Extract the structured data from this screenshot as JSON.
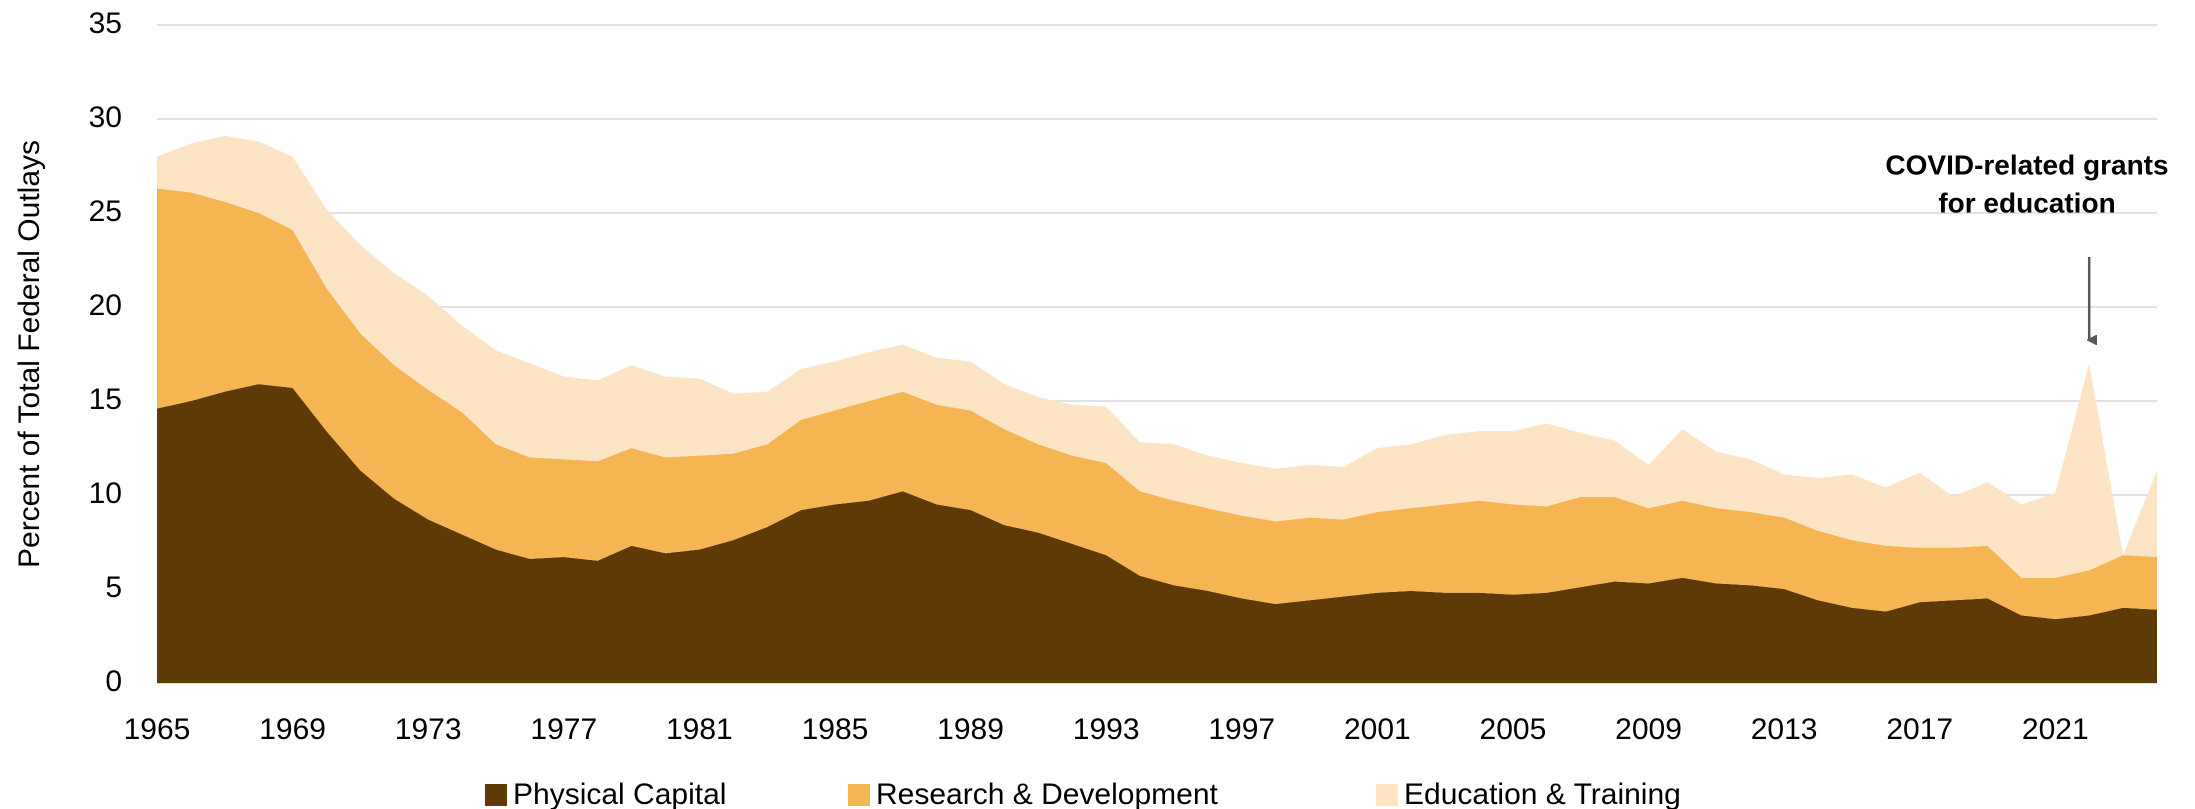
{
  "chart_data": {
    "type": "stacked_area",
    "y_label": "Percent of Total Federal Outlays",
    "x": [
      1965,
      1966,
      1967,
      1968,
      1969,
      1970,
      1971,
      1972,
      1973,
      1974,
      1975,
      1976,
      1977,
      1978,
      1979,
      1980,
      1981,
      1982,
      1983,
      1984,
      1985,
      1986,
      1987,
      1988,
      1989,
      1990,
      1991,
      1992,
      1993,
      1994,
      1995,
      1996,
      1997,
      1998,
      1999,
      2000,
      2001,
      2002,
      2003,
      2004,
      2005,
      2006,
      2007,
      2008,
      2009,
      2010,
      2011,
      2012,
      2013,
      2014,
      2015,
      2016,
      2017,
      2018,
      2019,
      2020,
      2021,
      2022,
      2023,
      2024
    ],
    "series": [
      {
        "name": "Physical Capital",
        "color": "#5e3a06",
        "values": [
          14.6,
          15.0,
          15.5,
          15.9,
          15.7,
          13.4,
          11.3,
          9.8,
          8.7,
          7.9,
          7.1,
          6.6,
          6.7,
          6.5,
          7.3,
          6.9,
          7.1,
          7.6,
          8.3,
          9.2,
          9.5,
          9.7,
          10.2,
          9.5,
          9.2,
          8.4,
          8.0,
          7.4,
          6.8,
          5.7,
          5.2,
          4.9,
          4.5,
          4.2,
          4.4,
          4.6,
          4.8,
          4.9,
          4.8,
          4.8,
          4.7,
          4.8,
          5.1,
          5.4,
          5.3,
          5.6,
          5.3,
          5.2,
          5.0,
          4.4,
          4.0,
          3.8,
          4.3,
          4.4,
          4.5,
          3.6,
          3.4,
          3.6,
          4.0,
          3.9
        ]
      },
      {
        "name": "Research & Development",
        "color": "#f5b553",
        "values": [
          11.7,
          11.1,
          10.1,
          9.1,
          8.4,
          7.6,
          7.3,
          7.1,
          6.9,
          6.5,
          5.6,
          5.4,
          5.2,
          5.3,
          5.2,
          5.1,
          5.0,
          4.6,
          4.4,
          4.8,
          5.0,
          5.3,
          5.3,
          5.3,
          5.3,
          5.1,
          4.7,
          4.7,
          4.9,
          4.5,
          4.5,
          4.4,
          4.4,
          4.4,
          4.4,
          4.1,
          4.3,
          4.4,
          4.7,
          4.9,
          4.8,
          4.6,
          4.8,
          4.5,
          4.0,
          4.1,
          4.0,
          3.9,
          3.8,
          3.7,
          3.6,
          3.5,
          2.9,
          2.8,
          2.8,
          2.0,
          2.2,
          2.4,
          2.8,
          2.8
        ]
      },
      {
        "name": "Education & Training",
        "color": "#fce4c4",
        "values": [
          1.7,
          2.6,
          3.5,
          3.8,
          3.9,
          4.2,
          4.7,
          4.9,
          5.0,
          4.6,
          5.0,
          5.0,
          4.4,
          4.3,
          4.4,
          4.3,
          4.1,
          3.2,
          2.8,
          2.7,
          2.6,
          2.6,
          2.5,
          2.5,
          2.6,
          2.4,
          2.5,
          2.7,
          3.0,
          2.6,
          3.0,
          2.8,
          2.8,
          2.8,
          2.8,
          2.8,
          3.4,
          3.4,
          3.7,
          3.7,
          3.9,
          4.4,
          3.4,
          3.0,
          2.3,
          3.8,
          3.0,
          2.8,
          2.3,
          2.8,
          3.5,
          3.1,
          4.0,
          2.7,
          3.4,
          3.9,
          4.5,
          11.0,
          0,
          4.6
        ]
      }
    ],
    "xlim": [
      1965,
      2024
    ],
    "xticks": [
      1965,
      1969,
      1973,
      1977,
      1981,
      1985,
      1989,
      1993,
      1997,
      2001,
      2005,
      2009,
      2013,
      2017,
      2021
    ],
    "ylim": [
      0,
      35
    ],
    "yticks": [
      0,
      5,
      10,
      15,
      20,
      25,
      30,
      35
    ],
    "grid": true,
    "legend": "bottom",
    "annotation": {
      "lines": [
        "COVID-related grants",
        "for education"
      ],
      "x": 2022
    }
  }
}
